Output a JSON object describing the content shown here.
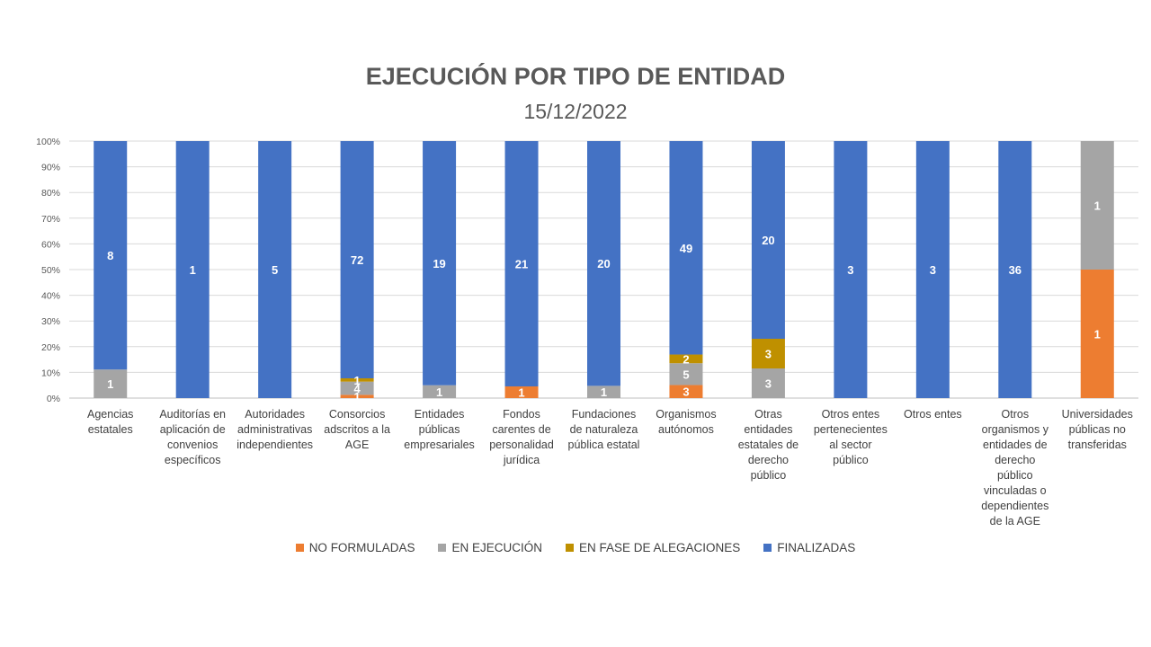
{
  "chart_data": {
    "type": "bar",
    "stacked": true,
    "percent_stacked": true,
    "title": "EJECUCIÓN POR TIPO DE ENTIDAD",
    "subtitle": "15/12/2022",
    "categories": [
      "Agencias estatales",
      "Auditorías en aplicación de convenios específicos",
      "Autoridades administrativas independientes",
      "Consorcios adscritos a la AGE",
      "Entidades públicas empresariales",
      "Fondos carentes de personalidad jurídica",
      "Fundaciones de naturaleza pública estatal",
      "Organismos autónomos",
      "Otras entidades estatales de derecho público",
      "Otros entes pertenecientes al sector público",
      "Otros entes",
      "Otros organismos y entidades de derecho público vinculadas o dependientes de la AGE",
      "Universidades públicas no transferidas"
    ],
    "series": [
      {
        "name": "NO FORMULADAS",
        "color": "#ED7D31",
        "values": [
          0,
          0,
          0,
          1,
          0,
          1,
          0,
          3,
          0,
          0,
          0,
          0,
          1
        ]
      },
      {
        "name": "EN EJECUCIÓN",
        "color": "#A5A5A5",
        "values": [
          1,
          0,
          0,
          4,
          1,
          0,
          1,
          5,
          3,
          0,
          0,
          0,
          1
        ]
      },
      {
        "name": "EN FASE DE ALEGACIONES",
        "color": "#BF9000",
        "values": [
          0,
          0,
          0,
          1,
          0,
          0,
          0,
          2,
          3,
          0,
          0,
          0,
          0
        ]
      },
      {
        "name": "FINALIZADAS",
        "color": "#4472C4",
        "values": [
          8,
          1,
          5,
          72,
          19,
          21,
          20,
          49,
          20,
          3,
          3,
          36,
          0
        ]
      }
    ],
    "y_ticks": [
      "0%",
      "10%",
      "20%",
      "30%",
      "40%",
      "50%",
      "60%",
      "70%",
      "80%",
      "90%",
      "100%"
    ],
    "ylim": [
      0,
      100
    ],
    "grid": true,
    "legend_position": "bottom"
  }
}
